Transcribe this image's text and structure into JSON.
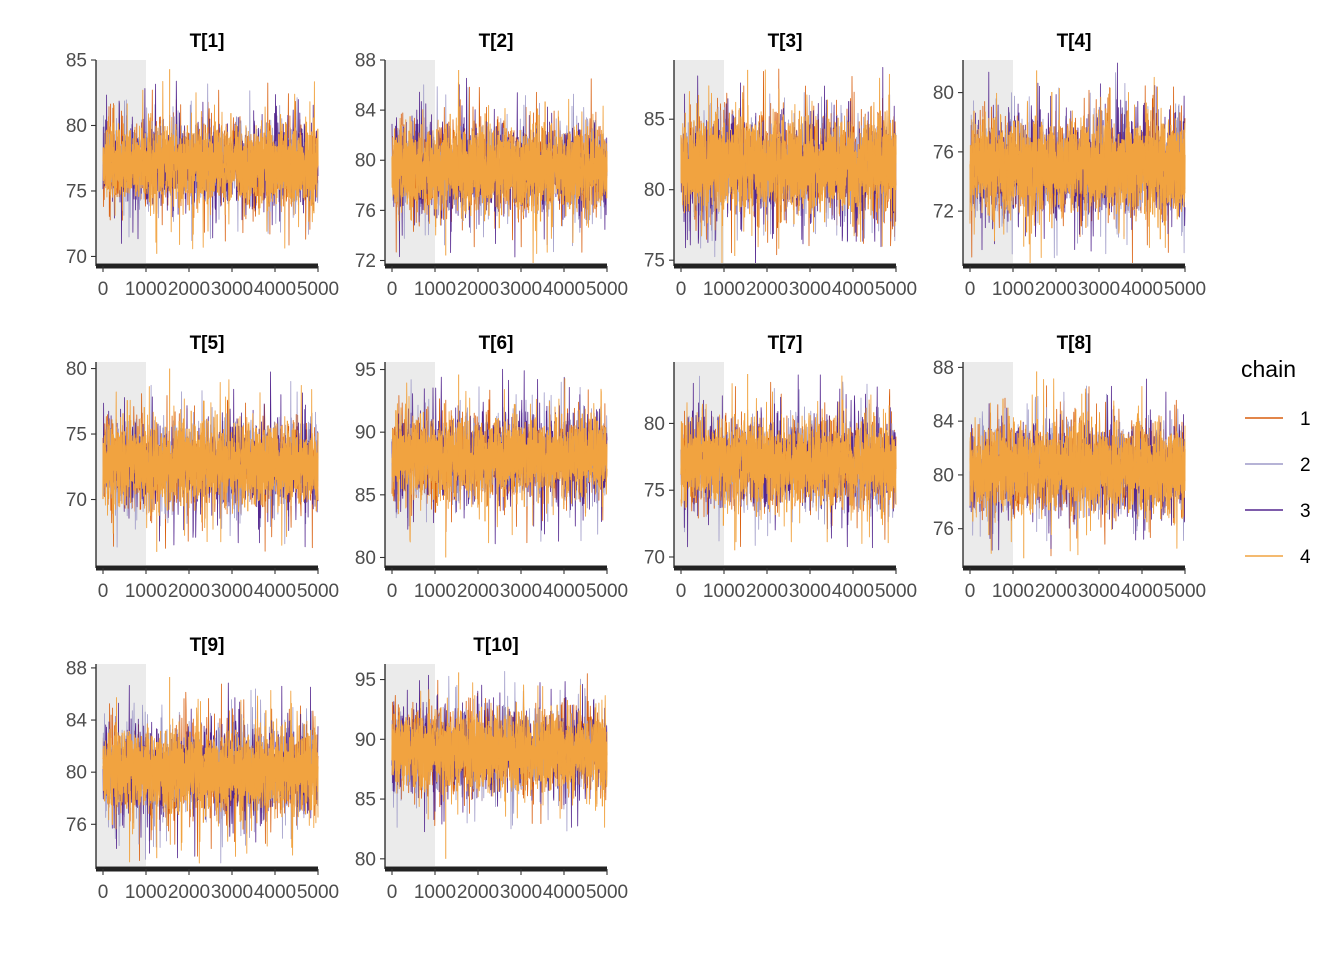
{
  "chart_data": {
    "type": "line",
    "legend": {
      "title": "chain",
      "position": "right"
    },
    "colors": {
      "1": "#d95f0e",
      "2": "#9e9ac8",
      "3": "#54278f",
      "4": "#f1a340",
      "warmup_shade": "#ebebeb"
    },
    "series": [
      {
        "name": "1",
        "color": "#d95f0e"
      },
      {
        "name": "2",
        "color": "#9e9ac8"
      },
      {
        "name": "3",
        "color": "#54278f"
      },
      {
        "name": "4",
        "color": "#f1a340"
      }
    ],
    "x_range": [
      0,
      5000
    ],
    "x_ticks": [
      0,
      1000,
      2000,
      3000,
      4000,
      5000
    ],
    "warmup": [
      0,
      1000
    ],
    "panels": [
      {
        "title": "T[1]",
        "ylim": [
          69.5,
          85
        ],
        "yticks": [
          70,
          75,
          80,
          85
        ],
        "center": 77,
        "bandSD": 1.7,
        "extreme_max": 84.3,
        "extreme_min": 70.2
      },
      {
        "title": "T[2]",
        "ylim": [
          71.8,
          88
        ],
        "yticks": [
          72,
          76,
          80,
          84,
          88
        ],
        "center": 79.3,
        "bandSD": 1.9,
        "extreme_max": 87.2,
        "extreme_min": 72.4
      },
      {
        "title": "T[3]",
        "ylim": [
          74.8,
          89.2
        ],
        "yticks": [
          75,
          80,
          85
        ],
        "center": 81.7,
        "bandSD": 1.9,
        "extreme_max": 88.5,
        "extreme_min": 75.3
      },
      {
        "title": "T[4]",
        "ylim": [
          68.5,
          82.2
        ],
        "yticks": [
          72,
          76,
          80
        ],
        "center": 75,
        "bandSD": 1.75,
        "extreme_max": 81.5,
        "extreme_min": 69.6
      },
      {
        "title": "T[5]",
        "ylim": [
          65,
          80.5
        ],
        "yticks": [
          70,
          75,
          80
        ],
        "center": 72.7,
        "bandSD": 1.75,
        "extreme_max": 80,
        "extreme_min": 66
      },
      {
        "title": "T[6]",
        "ylim": [
          79.4,
          95.6
        ],
        "yticks": [
          80,
          85,
          90,
          95
        ],
        "center": 88,
        "bandSD": 1.85,
        "extreme_max": 94.6,
        "extreme_min": 80
      },
      {
        "title": "T[7]",
        "ylim": [
          69.4,
          84.6
        ],
        "yticks": [
          70,
          75,
          80
        ],
        "center": 77,
        "bandSD": 1.75,
        "extreme_max": 83.7,
        "extreme_min": 70.5
      },
      {
        "title": "T[8]",
        "ylim": [
          73.3,
          88.4
        ],
        "yticks": [
          76,
          80,
          84,
          88
        ],
        "center": 80.5,
        "bandSD": 1.75,
        "extreme_max": 87.7,
        "extreme_min": 73.8
      },
      {
        "title": "T[9]",
        "ylim": [
          72.8,
          88.3
        ],
        "yticks": [
          76,
          80,
          84,
          88
        ],
        "center": 80,
        "bandSD": 1.85,
        "extreme_max": 87.3,
        "extreme_min": 73.4
      },
      {
        "title": "T[10]",
        "ylim": [
          79.4,
          96.3
        ],
        "yticks": [
          80,
          85,
          90,
          95
        ],
        "center": 89,
        "bandSD": 1.85,
        "extreme_max": 95.6,
        "extreme_min": 80
      }
    ]
  }
}
